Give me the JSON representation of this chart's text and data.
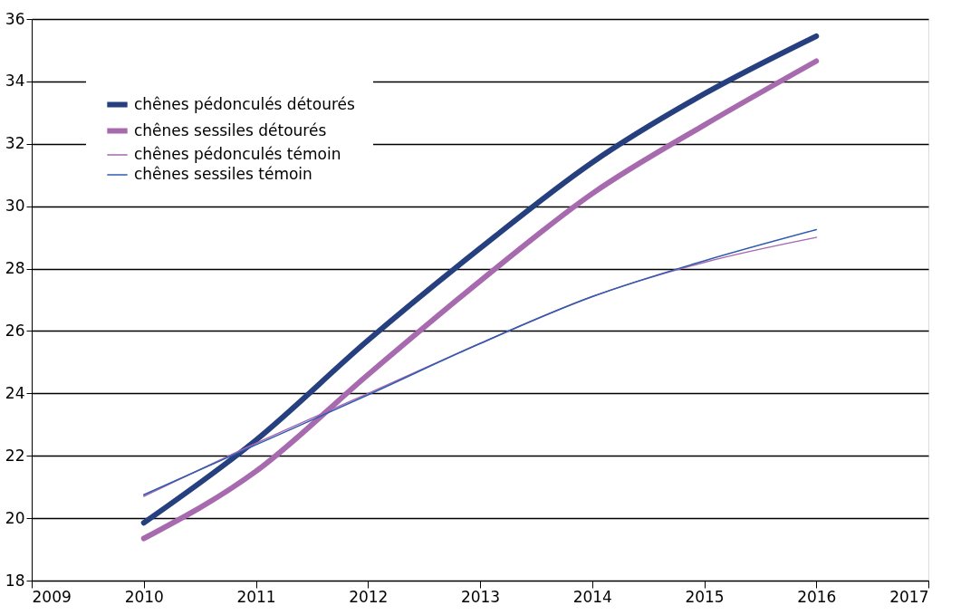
{
  "chart_data": {
    "type": "line",
    "x": [
      2010,
      2011,
      2012,
      2013,
      2014,
      2015,
      2016
    ],
    "series": [
      {
        "name": "chênes pédonculés détourés",
        "color": "#253f7f",
        "values": [
          19.85,
          22.5,
          25.7,
          28.65,
          31.4,
          33.6,
          35.45
        ]
      },
      {
        "name": "chênes sessiles détourés",
        "color": "#a86aae",
        "values": [
          19.35,
          21.5,
          24.6,
          27.6,
          30.4,
          32.6,
          34.65
        ]
      },
      {
        "name": "chênes pédonculés témoin",
        "color": "#a866b0",
        "values": [
          20.7,
          22.4,
          24.0,
          25.6,
          27.1,
          28.2,
          29.0
        ]
      },
      {
        "name": "chênes sessiles témoin",
        "color": "#2f5cae",
        "values": [
          20.75,
          22.35,
          23.95,
          25.6,
          27.1,
          28.25,
          29.25
        ]
      }
    ],
    "xlim": [
      2009,
      2017
    ],
    "xticks": [
      2009,
      2010,
      2011,
      2012,
      2013,
      2014,
      2015,
      2016,
      2017
    ],
    "ylim": [
      18,
      36
    ],
    "yticks": [
      18,
      20,
      22,
      24,
      26,
      28,
      30,
      32,
      34,
      36
    ],
    "grid": "y",
    "legend": "top left",
    "marker": "none",
    "line_style": "solid"
  }
}
